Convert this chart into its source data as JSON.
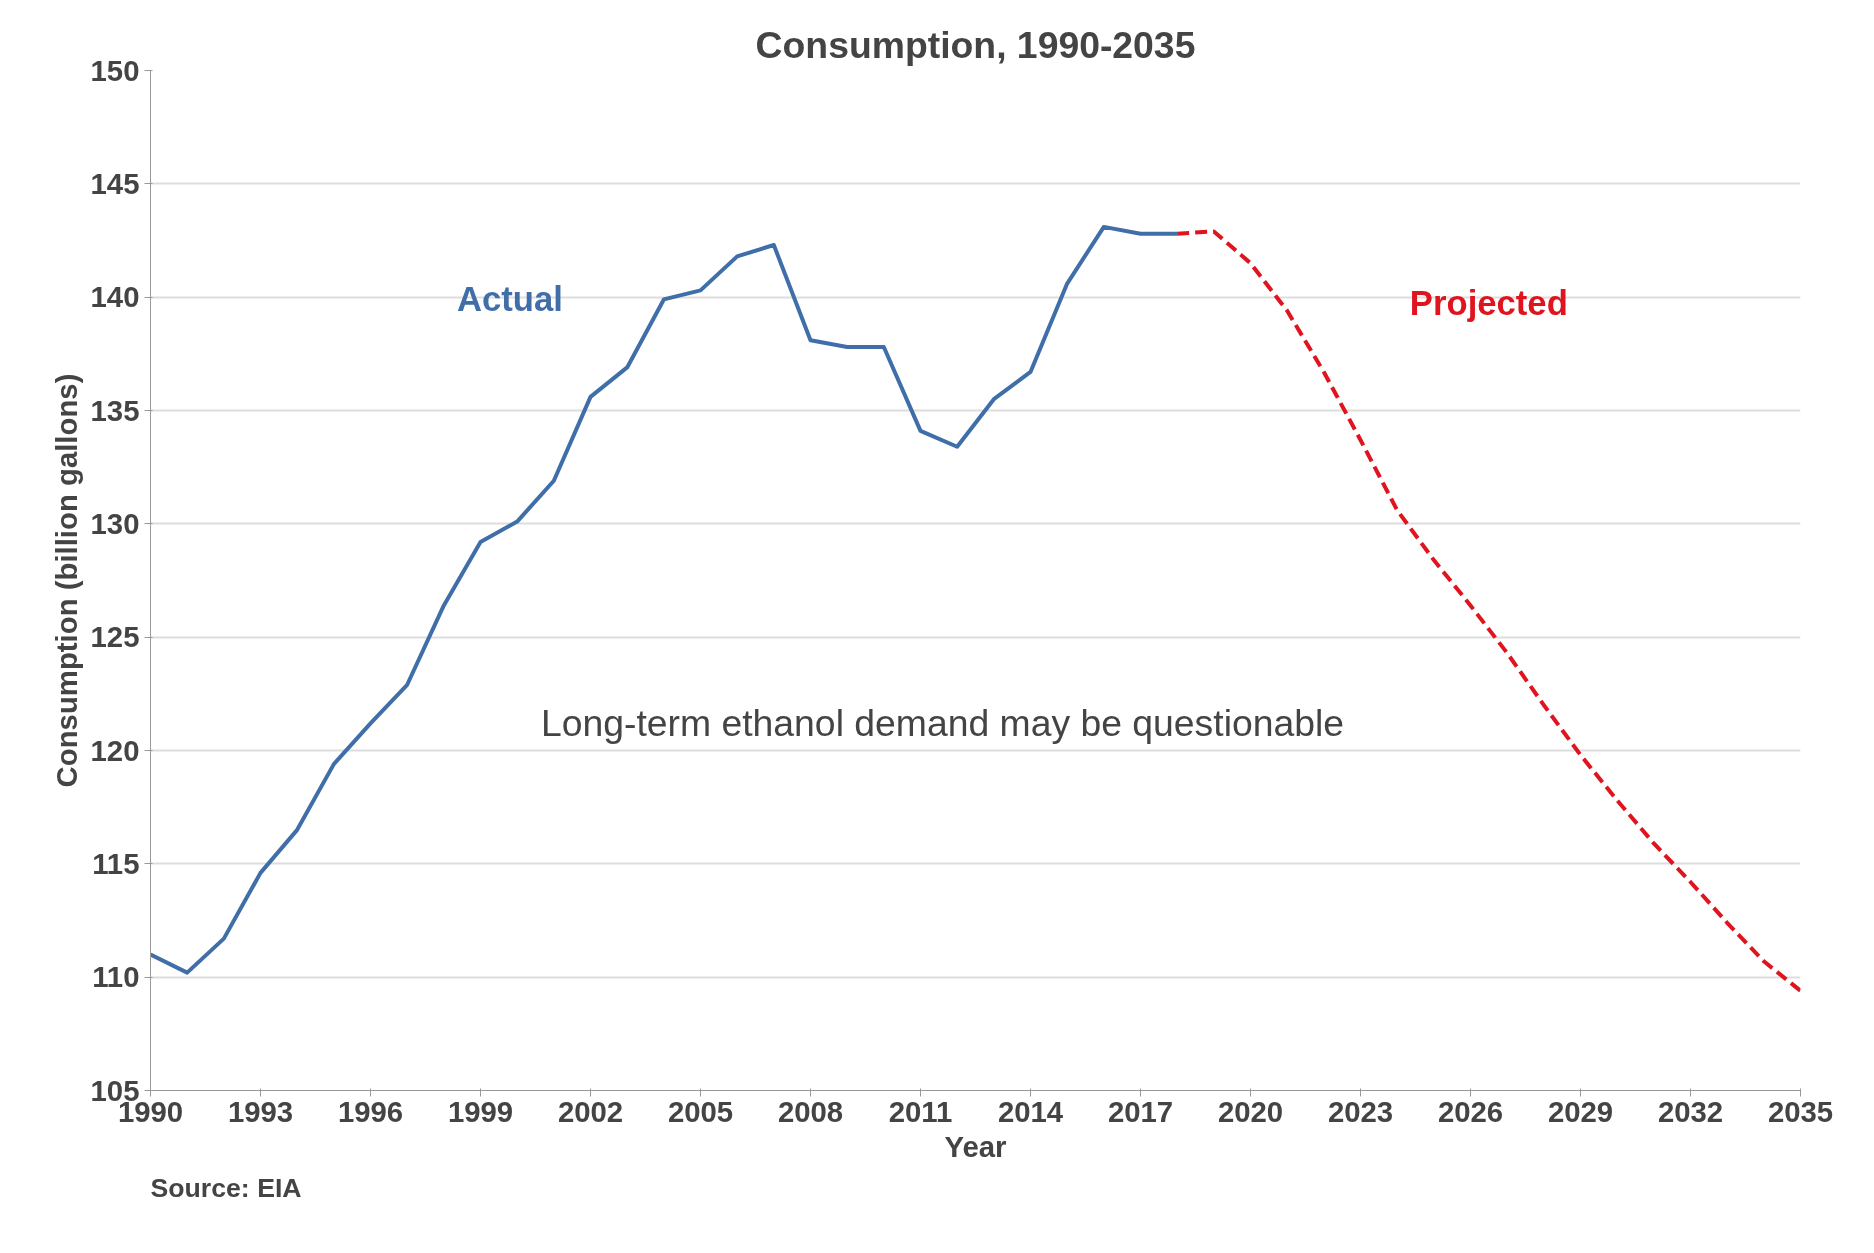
{
  "chart_data": {
    "type": "line",
    "title": "Consumption, 1990-2035",
    "xlabel": "Year",
    "ylabel": "Consumption (billion gallons)",
    "xlim": [
      1990,
      2035
    ],
    "ylim": [
      105,
      150
    ],
    "xticks": [
      1990,
      1993,
      1996,
      1999,
      2002,
      2005,
      2008,
      2011,
      2014,
      2017,
      2020,
      2023,
      2026,
      2029,
      2032,
      2035
    ],
    "yticks": [
      105,
      110,
      115,
      120,
      125,
      130,
      135,
      140,
      145,
      150
    ],
    "grid": "y",
    "marker": "none",
    "series": [
      {
        "name": "Actual",
        "color": "#3f6ea8",
        "line_style": "solid",
        "x": [
          1990,
          1991,
          1992,
          1993,
          1994,
          1995,
          1996,
          1997,
          1998,
          1999,
          2000,
          2001,
          2002,
          2003,
          2004,
          2005,
          2006,
          2007,
          2008,
          2009,
          2010,
          2011,
          2012,
          2013,
          2014,
          2015,
          2016,
          2017,
          2018
        ],
        "values": [
          111.0,
          110.2,
          111.7,
          114.6,
          116.5,
          119.4,
          121.2,
          122.9,
          126.4,
          129.2,
          130.1,
          131.9,
          135.6,
          136.9,
          139.9,
          140.3,
          141.8,
          142.3,
          138.1,
          137.8,
          137.8,
          134.1,
          133.4,
          135.5,
          136.7,
          140.6,
          143.1,
          142.8,
          142.8
        ]
      },
      {
        "name": "Projected",
        "color": "#e0141e",
        "line_style": "dashed",
        "x": [
          2018,
          2019,
          2020,
          2021,
          2022,
          2023,
          2024,
          2025,
          2026,
          2027,
          2028,
          2029,
          2030,
          2031,
          2032,
          2033,
          2034,
          2035
        ],
        "values": [
          142.8,
          142.9,
          141.5,
          139.4,
          136.7,
          133.7,
          130.6,
          128.4,
          126.4,
          124.3,
          122.0,
          119.8,
          117.8,
          115.9,
          114.2,
          112.4,
          110.7,
          109.4
        ]
      }
    ],
    "annotations": [
      "Long-term ethanol demand may be questionable",
      "Source: EIA"
    ]
  }
}
